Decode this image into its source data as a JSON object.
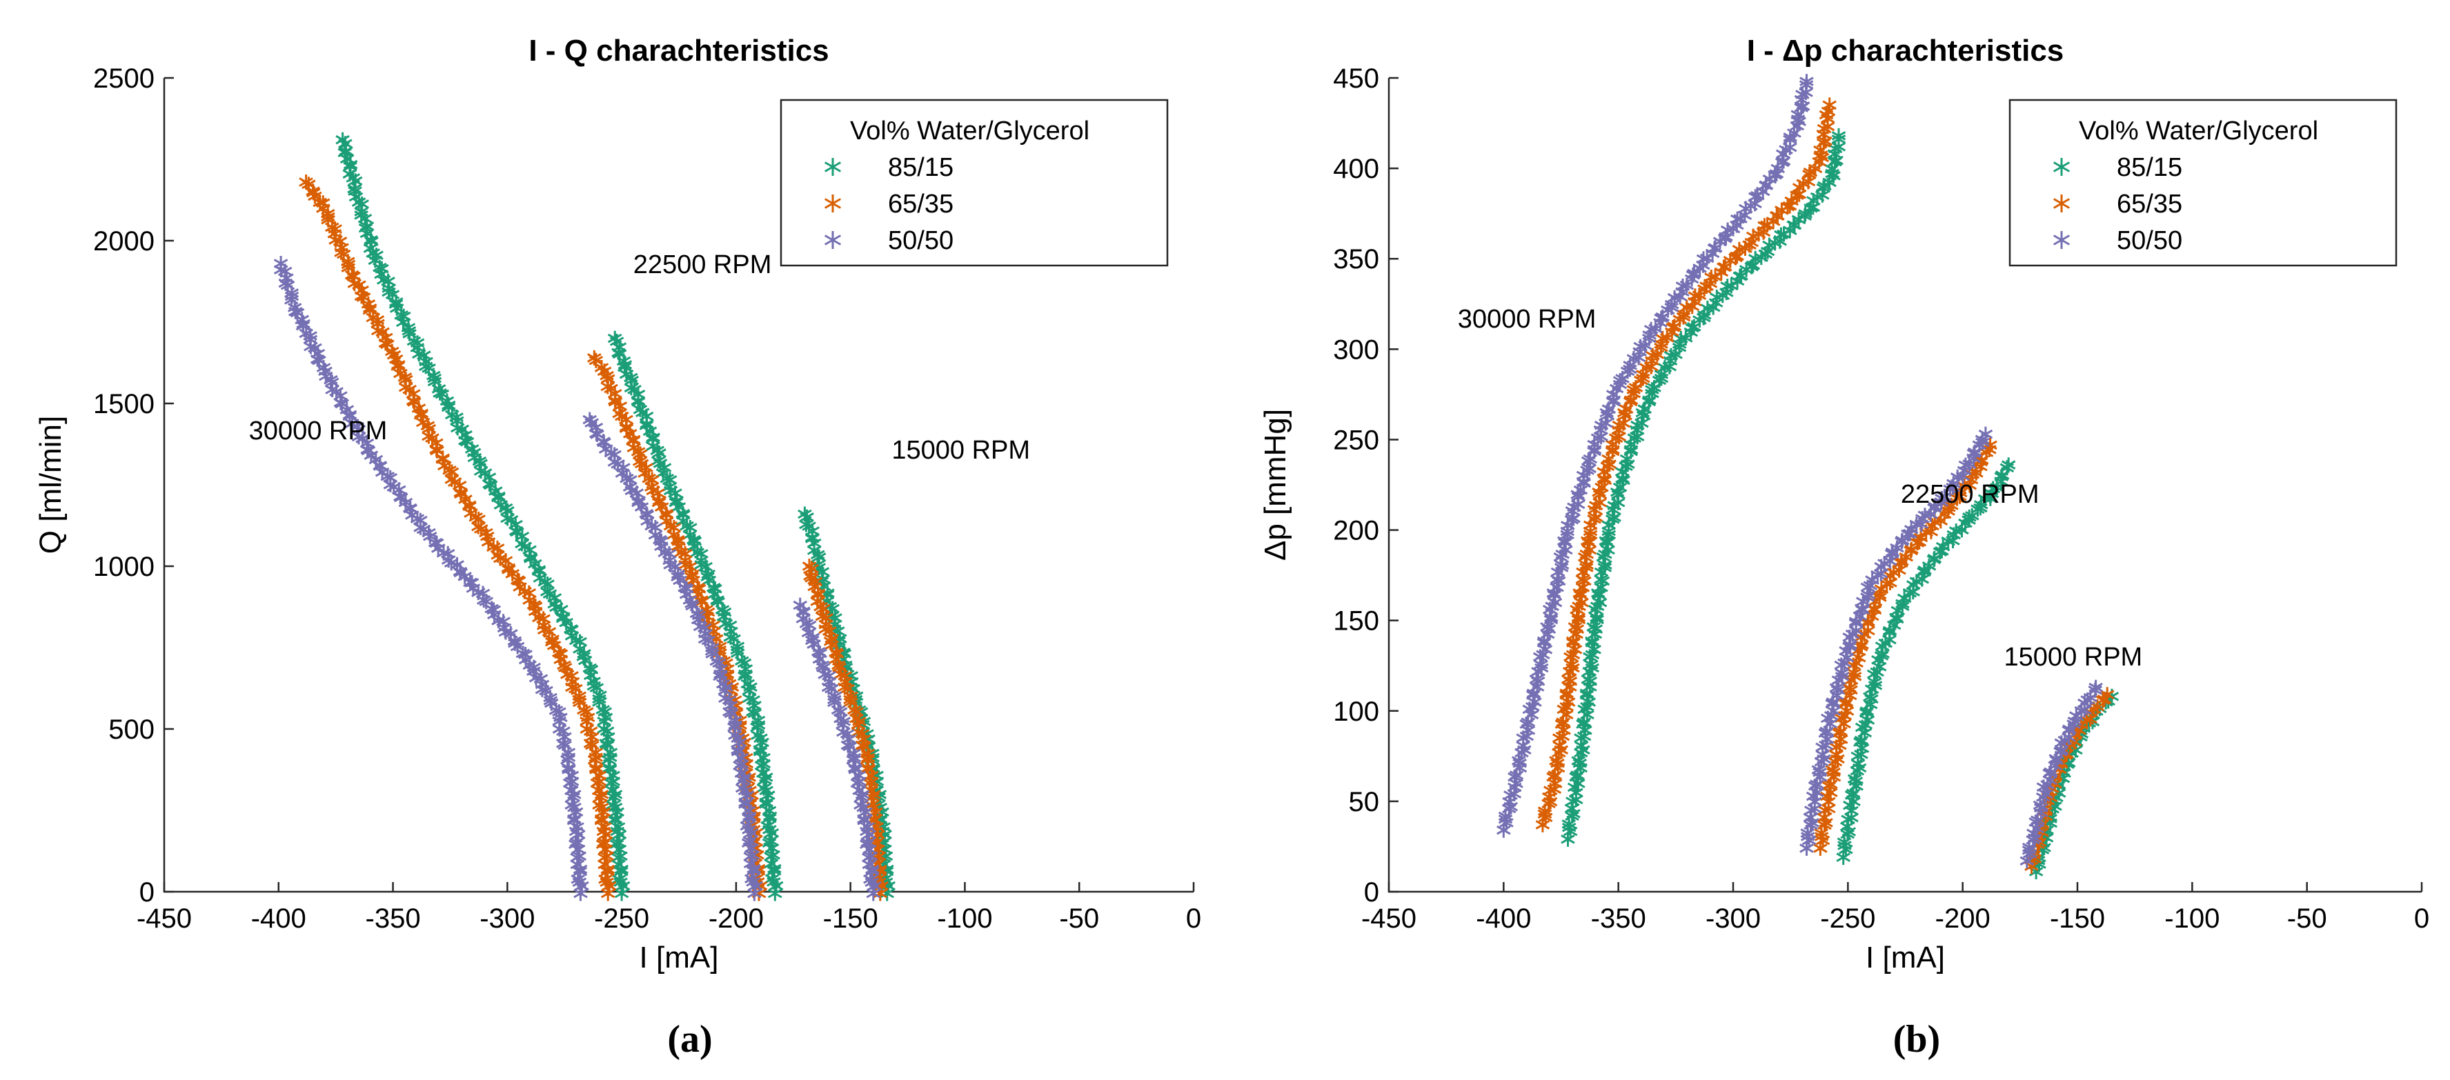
{
  "chart_data": [
    {
      "type": "scatter",
      "id": "a",
      "title": "I - Q charachteristics",
      "xlabel": "I [mA]",
      "ylabel": "Q [ml/min]",
      "xlim": [
        -450,
        0
      ],
      "ylim": [
        0,
        2500
      ],
      "xticks": [
        -450,
        -400,
        -350,
        -300,
        -250,
        -200,
        -150,
        -100,
        -50,
        0
      ],
      "yticks": [
        0,
        500,
        1000,
        1500,
        2000,
        2500
      ],
      "panel_label": "(a)",
      "legend": {
        "title": "Vol% Water/Glycerol",
        "position": "top-right"
      },
      "annotations": [
        {
          "text": "22500 RPM",
          "x": -245,
          "y": 1900
        },
        {
          "text": "30000 RPM",
          "x": -413,
          "y": 1390
        },
        {
          "text": "15000 RPM",
          "x": -132,
          "y": 1330
        }
      ],
      "series": [
        {
          "name": "85/15",
          "color": "#1b9e77",
          "curves": [
            {
              "speed": "30000 RPM",
              "x": [
                -250,
                -252,
                -255,
                -258,
                -262,
                -268,
                -280,
                -295,
                -315,
                -330,
                -345,
                -358,
                -366,
                -372
              ],
              "y": [
                0,
                200,
                400,
                550,
                650,
                750,
                900,
                1100,
                1350,
                1550,
                1750,
                1950,
                2150,
                2310
              ]
            },
            {
              "speed": "22500 RPM",
              "x": [
                -183,
                -186,
                -190,
                -197,
                -208,
                -220,
                -232,
                -242,
                -249,
                -253
              ],
              "y": [
                0,
                250,
                500,
                700,
                900,
                1100,
                1300,
                1500,
                1620,
                1700
              ]
            },
            {
              "speed": "15000 RPM",
              "x": [
                -134,
                -136,
                -140,
                -146,
                -152,
                -158,
                -163,
                -166,
                -170
              ],
              "y": [
                0,
                200,
                400,
                550,
                700,
                850,
                980,
                1080,
                1160
              ]
            }
          ]
        },
        {
          "name": "65/35",
          "color": "#d95f02",
          "curves": [
            {
              "speed": "30000 RPM",
              "x": [
                -256,
                -258,
                -261,
                -266,
                -275,
                -290,
                -310,
                -330,
                -350,
                -368,
                -380,
                -388
              ],
              "y": [
                0,
                200,
                400,
                550,
                700,
                900,
                1100,
                1350,
                1650,
                1900,
                2100,
                2180
              ]
            },
            {
              "speed": "22500 RPM",
              "x": [
                -190,
                -193,
                -198,
                -205,
                -215,
                -227,
                -240,
                -252,
                -258,
                -262
              ],
              "y": [
                0,
                250,
                500,
                700,
                900,
                1100,
                1300,
                1500,
                1600,
                1640
              ]
            },
            {
              "speed": "15000 RPM",
              "x": [
                -137,
                -139,
                -142,
                -148,
                -155,
                -162,
                -166,
                -168
              ],
              "y": [
                0,
                200,
                400,
                550,
                700,
                850,
                950,
                1000
              ]
            }
          ]
        },
        {
          "name": "50/50",
          "color": "#7570b3",
          "curves": [
            {
              "speed": "30000 RPM",
              "x": [
                -268,
                -270,
                -273,
                -278,
                -290,
                -310,
                -335,
                -360,
                -380,
                -393,
                -399
              ],
              "y": [
                0,
                200,
                400,
                550,
                700,
                900,
                1100,
                1350,
                1600,
                1800,
                1930
              ]
            },
            {
              "speed": "22500 RPM",
              "x": [
                -192,
                -195,
                -200,
                -208,
                -220,
                -235,
                -250,
                -260,
                -264
              ],
              "y": [
                0,
                250,
                500,
                700,
                900,
                1100,
                1300,
                1400,
                1450
              ]
            },
            {
              "speed": "15000 RPM",
              "x": [
                -140,
                -143,
                -148,
                -155,
                -162,
                -168,
                -172
              ],
              "y": [
                0,
                200,
                400,
                550,
                700,
                800,
                880
              ]
            }
          ]
        }
      ]
    },
    {
      "type": "scatter",
      "id": "b",
      "title": "I - Δp charachteristics",
      "xlabel": "I [mA]",
      "ylabel": "Δp [mmHg]",
      "xlim": [
        -450,
        0
      ],
      "ylim": [
        0,
        450
      ],
      "xticks": [
        -450,
        -400,
        -350,
        -300,
        -250,
        -200,
        -150,
        -100,
        -50,
        0
      ],
      "yticks": [
        0,
        50,
        100,
        150,
        200,
        250,
        300,
        350,
        400,
        450
      ],
      "panel_label": "(b)",
      "legend": {
        "title": "Vol% Water/Glycerol",
        "position": "top-right"
      },
      "annotations": [
        {
          "text": "30000 RPM",
          "x": -420,
          "y": 312
        },
        {
          "text": "22500 RPM",
          "x": -227,
          "y": 215
        },
        {
          "text": "15000 RPM",
          "x": -182,
          "y": 125
        }
      ],
      "series": [
        {
          "name": "85/15",
          "color": "#1b9e77",
          "curves": [
            {
              "speed": "30000 RPM",
              "x": [
                -372,
                -368,
                -364,
                -360,
                -354,
                -346,
                -336,
                -322,
                -305,
                -285,
                -268,
                -257,
                -254
              ],
              "y": [
                30,
                60,
                100,
                150,
                200,
                240,
                275,
                305,
                330,
                355,
                375,
                395,
                418
              ]
            },
            {
              "speed": "22500 RPM",
              "x": [
                -252,
                -248,
                -243,
                -236,
                -226,
                -212,
                -198,
                -186,
                -180
              ],
              "y": [
                20,
                50,
                90,
                130,
                160,
                185,
                205,
                222,
                236
              ]
            },
            {
              "speed": "15000 RPM",
              "x": [
                -168,
                -164,
                -160,
                -155,
                -148,
                -140,
                -135
              ],
              "y": [
                12,
                30,
                50,
                70,
                88,
                102,
                108
              ]
            }
          ]
        },
        {
          "name": "65/35",
          "color": "#d95f02",
          "curves": [
            {
              "speed": "30000 RPM",
              "x": [
                -383,
                -378,
                -373,
                -368,
                -362,
                -354,
                -344,
                -330,
                -312,
                -292,
                -274,
                -262,
                -258
              ],
              "y": [
                38,
                60,
                100,
                150,
                200,
                240,
                275,
                305,
                335,
                360,
                382,
                405,
                435
              ]
            },
            {
              "speed": "22500 RPM",
              "x": [
                -262,
                -258,
                -252,
                -245,
                -236,
                -222,
                -207,
                -195,
                -188
              ],
              "y": [
                25,
                55,
                95,
                135,
                165,
                190,
                210,
                230,
                247
              ]
            },
            {
              "speed": "15000 RPM",
              "x": [
                -170,
                -166,
                -162,
                -156,
                -149,
                -141,
                -137
              ],
              "y": [
                15,
                33,
                55,
                75,
                90,
                103,
                109
              ]
            }
          ]
        },
        {
          "name": "50/50",
          "color": "#7570b3",
          "curves": [
            {
              "speed": "30000 RPM",
              "x": [
                -400,
                -395,
                -388,
                -380,
                -372,
                -362,
                -350,
                -335,
                -315,
                -295,
                -280,
                -272,
                -268
              ],
              "y": [
                35,
                60,
                100,
                150,
                200,
                240,
                280,
                310,
                345,
                375,
                400,
                425,
                448
              ]
            },
            {
              "speed": "22500 RPM",
              "x": [
                -268,
                -264,
                -258,
                -250,
                -240,
                -226,
                -210,
                -198,
                -190
              ],
              "y": [
                25,
                55,
                95,
                135,
                170,
                195,
                215,
                235,
                253
              ]
            },
            {
              "speed": "15000 RPM",
              "x": [
                -172,
                -168,
                -164,
                -158,
                -151,
                -144,
                -142
              ],
              "y": [
                18,
                35,
                57,
                77,
                95,
                108,
                113
              ]
            }
          ]
        }
      ]
    }
  ]
}
